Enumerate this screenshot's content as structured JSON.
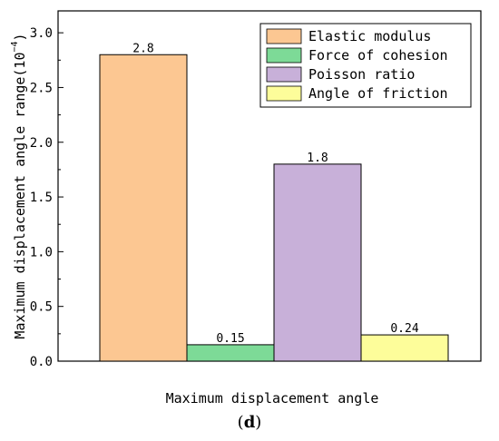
{
  "chart_data": {
    "type": "bar",
    "categories": [
      "Elastic modulus",
      "Force of cohesion",
      "Poisson ratio",
      "Angle of friction"
    ],
    "values": [
      2.8,
      0.15,
      1.8,
      0.24
    ],
    "value_labels": [
      "2.8",
      "0.15",
      "1.8",
      "0.24"
    ],
    "colors": [
      "#FCC792",
      "#7DDA97",
      "#C8B0D9",
      "#FDFD9A"
    ],
    "xlabel": "Maximum displacement angle",
    "ylabel_main": "Maximum displacement angle range",
    "ylabel_unit_base": "10",
    "ylabel_unit_exp": "−4",
    "ylim": [
      0,
      3.2
    ],
    "yticks": [
      "0.0",
      "0.5",
      "1.0",
      "1.5",
      "2.0",
      "2.5",
      "3.0"
    ],
    "ytick_values": [
      0,
      0.5,
      1.0,
      1.5,
      2.0,
      2.5,
      3.0
    ],
    "legend_placement": "top-right",
    "grid": false
  },
  "panel_label": {
    "open": "(",
    "letter": "d",
    "close": ")"
  }
}
